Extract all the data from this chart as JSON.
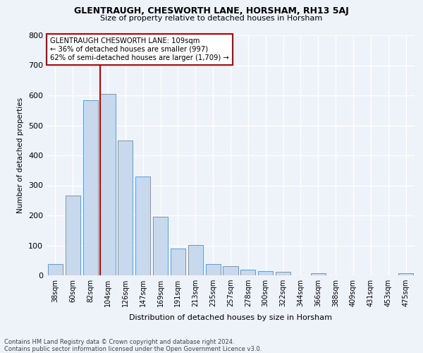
{
  "title1": "GLENTRAUGH, CHESWORTH LANE, HORSHAM, RH13 5AJ",
  "title2": "Size of property relative to detached houses in Horsham",
  "xlabel": "Distribution of detached houses by size in Horsham",
  "ylabel": "Number of detached properties",
  "categories": [
    "38sqm",
    "60sqm",
    "82sqm",
    "104sqm",
    "126sqm",
    "147sqm",
    "169sqm",
    "191sqm",
    "213sqm",
    "235sqm",
    "257sqm",
    "278sqm",
    "300sqm",
    "322sqm",
    "344sqm",
    "366sqm",
    "388sqm",
    "409sqm",
    "431sqm",
    "453sqm",
    "475sqm"
  ],
  "values": [
    38,
    267,
    583,
    605,
    449,
    330,
    196,
    90,
    101,
    38,
    30,
    18,
    15,
    11,
    0,
    8,
    0,
    0,
    0,
    0,
    8
  ],
  "bar_color": "#c9d9ed",
  "bar_edge_color": "#6699cc",
  "redline_index": 3,
  "annotation_line1": "GLENTRAUGH CHESWORTH LANE: 109sqm",
  "annotation_line2": "← 36% of detached houses are smaller (997)",
  "annotation_line3": "62% of semi-detached houses are larger (1,709) →",
  "annotation_box_color": "#ffffff",
  "annotation_box_edge": "#cc0000",
  "footer": "Contains HM Land Registry data © Crown copyright and database right 2024.\nContains public sector information licensed under the Open Government Licence v3.0.",
  "ylim": [
    0,
    800
  ],
  "yticks": [
    0,
    100,
    200,
    300,
    400,
    500,
    600,
    700,
    800
  ],
  "background_color": "#eef2f9",
  "grid_color": "#ffffff"
}
